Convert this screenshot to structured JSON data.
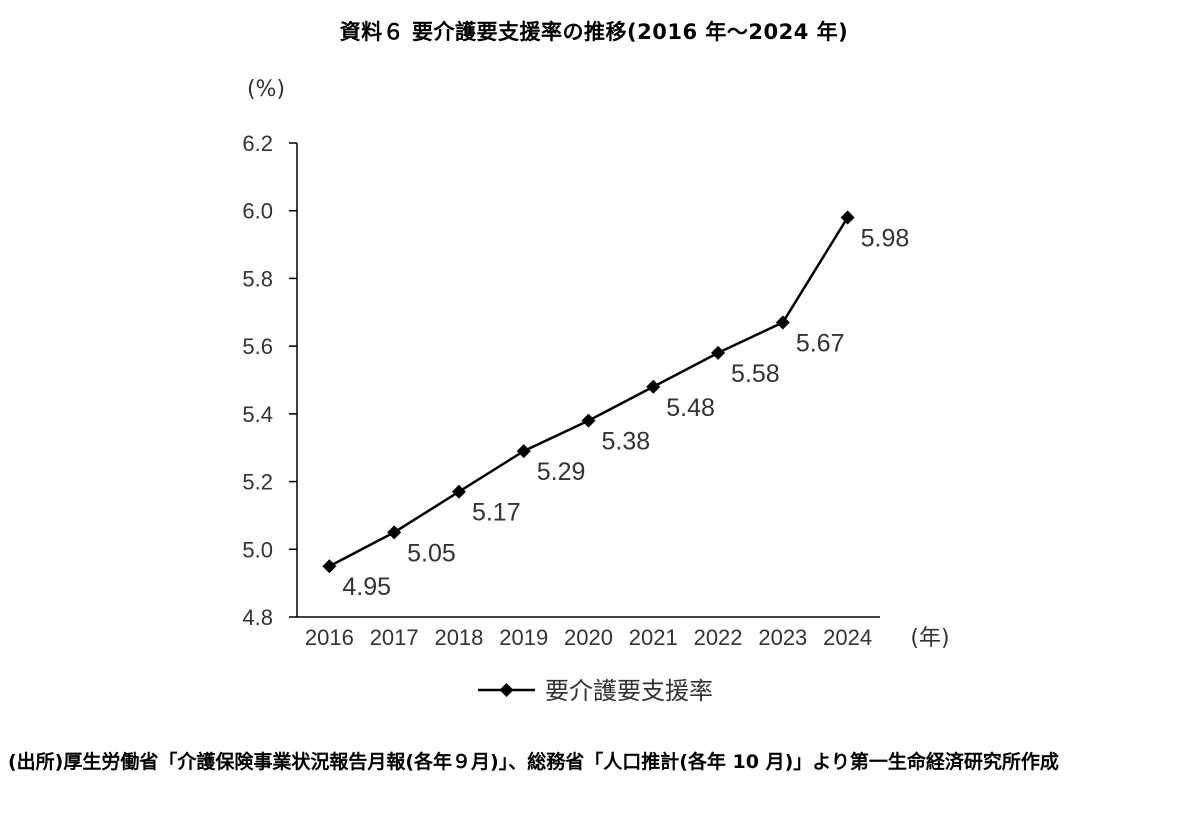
{
  "title": "資料６ 要介護要支援率の推移(2016 年～2024 年)",
  "source": "(出所)厚生労働省「介護保険事業状況報告月報(各年９月)」、総務省「人口推計(各年 10 月)」より第一生命経済研究所作成",
  "chart_data": {
    "type": "line",
    "title": "資料６ 要介護要支援率の推移(2016 年～2024 年)",
    "x_unit": "(年)",
    "y_unit": "(%)",
    "categories": [
      "2016",
      "2017",
      "2018",
      "2019",
      "2020",
      "2021",
      "2022",
      "2023",
      "2024"
    ],
    "series": [
      {
        "name": "要介護要支援率",
        "values": [
          4.95,
          5.05,
          5.17,
          5.29,
          5.38,
          5.48,
          5.58,
          5.67,
          5.98
        ],
        "labels": [
          "4.95",
          "5.05",
          "5.17",
          "5.29",
          "5.38",
          "5.48",
          "5.58",
          "5.67",
          "5.98"
        ],
        "color": "#000000",
        "marker": "diamond"
      }
    ],
    "ylim": [
      4.8,
      6.2
    ],
    "yticks": [
      4.8,
      5.0,
      5.2,
      5.4,
      5.6,
      5.8,
      6.0,
      6.2
    ],
    "ytick_labels": [
      "4.8",
      "5.0",
      "5.2",
      "5.4",
      "5.6",
      "5.8",
      "6.0",
      "6.2"
    ],
    "grid": false,
    "legend_position": "bottom"
  }
}
